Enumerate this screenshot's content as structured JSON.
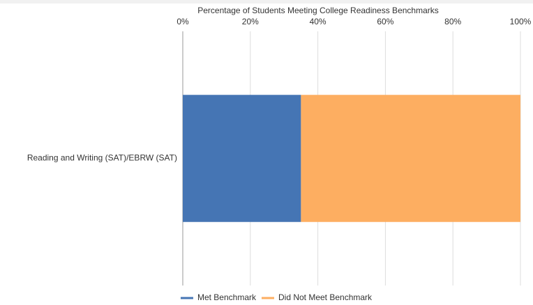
{
  "chart_data": {
    "type": "bar",
    "orientation": "horizontal",
    "stacked": true,
    "title": "Percentage of Students Meeting College Readiness Benchmarks",
    "categories": [
      "Reading and Writing (SAT)/EBRW (SAT)"
    ],
    "series": [
      {
        "name": "Met Benchmark",
        "color": "#4575b4",
        "values": [
          35
        ]
      },
      {
        "name": "Did Not Meet Benchmark",
        "color": "#fdae61",
        "values": [
          65
        ]
      }
    ],
    "xlim": [
      0,
      100
    ],
    "xticks": [
      {
        "value": 0,
        "label": "0%"
      },
      {
        "value": 20,
        "label": "20%"
      },
      {
        "value": 40,
        "label": "40%"
      },
      {
        "value": 60,
        "label": "60%"
      },
      {
        "value": 80,
        "label": "80%"
      },
      {
        "value": 100,
        "label": "100%"
      }
    ],
    "grid": true,
    "legend": "bottom"
  }
}
